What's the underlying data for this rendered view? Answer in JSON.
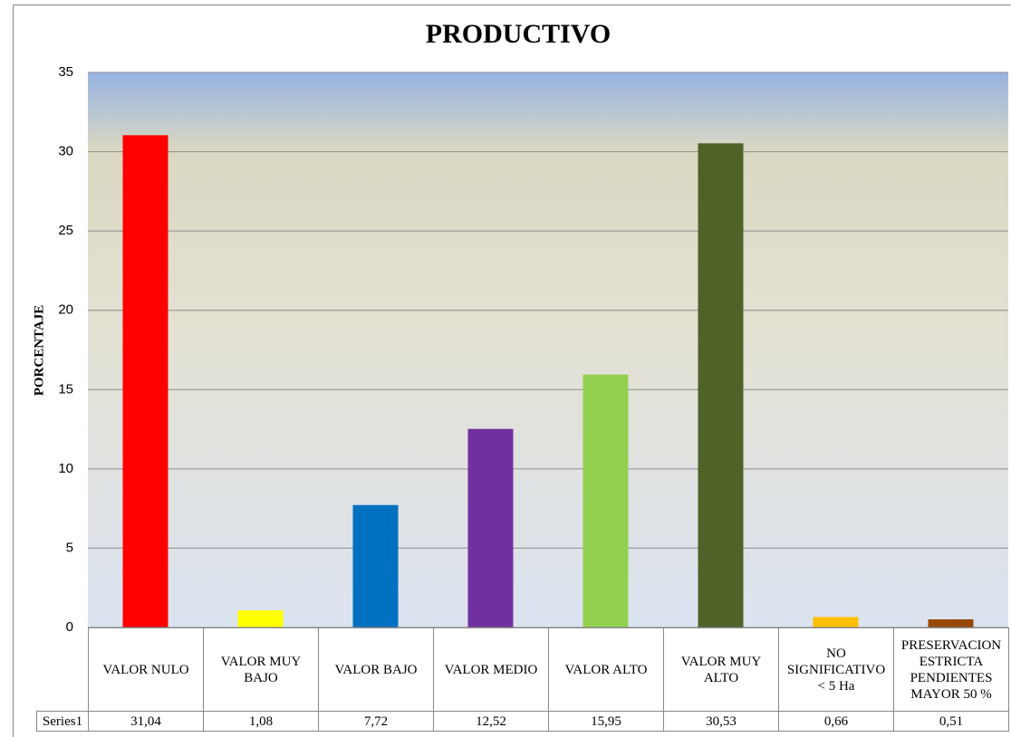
{
  "chart_data": {
    "type": "bar",
    "title": "PRODUCTIVO",
    "y_label": "PORCENTAJE",
    "categories": [
      "VALOR NULO",
      "VALOR MUY BAJO",
      "VALOR BAJO",
      "VALOR MEDIO",
      "VALOR ALTO",
      "VALOR MUY ALTO",
      "NO SIGNIFICATIVO < 5 Ha",
      "PRESERVACION ESTRICTA PENDIENTES MAYOR 50 %"
    ],
    "series": [
      {
        "name": "Series1",
        "values": [
          31.04,
          1.08,
          7.72,
          12.52,
          15.95,
          30.53,
          0.66,
          0.51
        ],
        "value_labels": [
          "31,04",
          "1,08",
          "7,72",
          "12,52",
          "15,95",
          "30,53",
          "0,66",
          "0,51"
        ],
        "colors": [
          "#ff0000",
          "#ffff00",
          "#0070c0",
          "#7030a0",
          "#92d050",
          "#4f6228",
          "#ffc000",
          "#974706"
        ]
      }
    ],
    "ylim": [
      0,
      35
    ],
    "yticks": [
      0,
      5,
      10,
      15,
      20,
      25,
      30,
      35
    ],
    "grid": true,
    "data_table": true
  }
}
